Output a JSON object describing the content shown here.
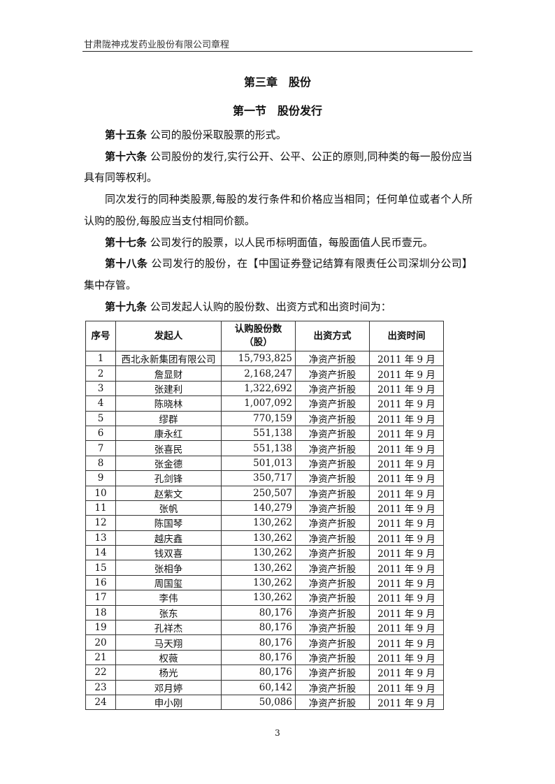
{
  "header": {
    "title": "甘肃陇神戎发药业股份有限公司章程"
  },
  "chapter_title": "第三章　股份",
  "section_title": "第一节　股份发行",
  "paragraphs": [
    {
      "label": "第十五条",
      "text": " 公司的股份采取股票的形式。"
    },
    {
      "label": "第十六条",
      "text": " 公司股份的发行,实行公开、公平、公正的原则,同种类的每一股份应当具有同等权利。"
    },
    {
      "label": "",
      "text": "同次发行的同种类股票,每股的发行条件和价格应当相同；任何单位或者个人所认购的股份,每股应当支付相同价额。"
    },
    {
      "label": "第十七条",
      "text": " 公司发行的股票，以人民币标明面值，每股面值人民币壹元。"
    },
    {
      "label": "第十八条",
      "text": " 公司发行的股份，在【中国证券登记结算有限责任公司深圳分公司】集中存管。"
    },
    {
      "label": "第十九条",
      "text": " 公司发起人认购的股份数、出资方式和出资时间为："
    }
  ],
  "table": {
    "headers": [
      "序号",
      "发起人",
      "认购股份数",
      "（股）",
      "出资方式",
      "出资时间"
    ],
    "rows": [
      [
        "1",
        "西北永新集团有限公司",
        "15,793,825",
        "净资产折股",
        "2011 年 9 月"
      ],
      [
        "2",
        "詹显财",
        "2,168,247",
        "净资产折股",
        "2011 年 9 月"
      ],
      [
        "3",
        "张建利",
        "1,322,692",
        "净资产折股",
        "2011 年 9 月"
      ],
      [
        "4",
        "陈晓林",
        "1,007,092",
        "净资产折股",
        "2011 年 9 月"
      ],
      [
        "5",
        "缪群",
        "770,159",
        "净资产折股",
        "2011 年 9 月"
      ],
      [
        "6",
        "康永红",
        "551,138",
        "净资产折股",
        "2011 年 9 月"
      ],
      [
        "7",
        "张喜民",
        "551,138",
        "净资产折股",
        "2011 年 9 月"
      ],
      [
        "8",
        "张金德",
        "501,013",
        "净资产折股",
        "2011 年 9 月"
      ],
      [
        "9",
        "孔剑锋",
        "350,717",
        "净资产折股",
        "2011 年 9 月"
      ],
      [
        "10",
        "赵紫文",
        "250,507",
        "净资产折股",
        "2011 年 9 月"
      ],
      [
        "11",
        "张帆",
        "140,279",
        "净资产折股",
        "2011 年 9 月"
      ],
      [
        "12",
        "陈国琴",
        "130,262",
        "净资产折股",
        "2011 年 9 月"
      ],
      [
        "13",
        "越庆鑫",
        "130,262",
        "净资产折股",
        "2011 年 9 月"
      ],
      [
        "14",
        "钱双喜",
        "130,262",
        "净资产折股",
        "2011 年 9 月"
      ],
      [
        "15",
        "张相争",
        "130,262",
        "净资产折股",
        "2011 年 9 月"
      ],
      [
        "16",
        "周国玺",
        "130,262",
        "净资产折股",
        "2011 年 9 月"
      ],
      [
        "17",
        "李伟",
        "130,262",
        "净资产折股",
        "2011 年 9 月"
      ],
      [
        "18",
        "张东",
        "80,176",
        "净资产折股",
        "2011 年 9 月"
      ],
      [
        "19",
        "孔祥杰",
        "80,176",
        "净资产折股",
        "2011 年 9 月"
      ],
      [
        "20",
        "马天翔",
        "80,176",
        "净资产折股",
        "2011 年 9 月"
      ],
      [
        "21",
        "权薇",
        "80,176",
        "净资产折股",
        "2011 年 9 月"
      ],
      [
        "22",
        "杨光",
        "80,176",
        "净资产折股",
        "2011 年 9 月"
      ],
      [
        "23",
        "邓月婷",
        "60,142",
        "净资产折股",
        "2011 年 9 月"
      ],
      [
        "24",
        "申小刚",
        "50,086",
        "净资产折股",
        "2011 年 9 月"
      ]
    ]
  },
  "page_number": "3"
}
